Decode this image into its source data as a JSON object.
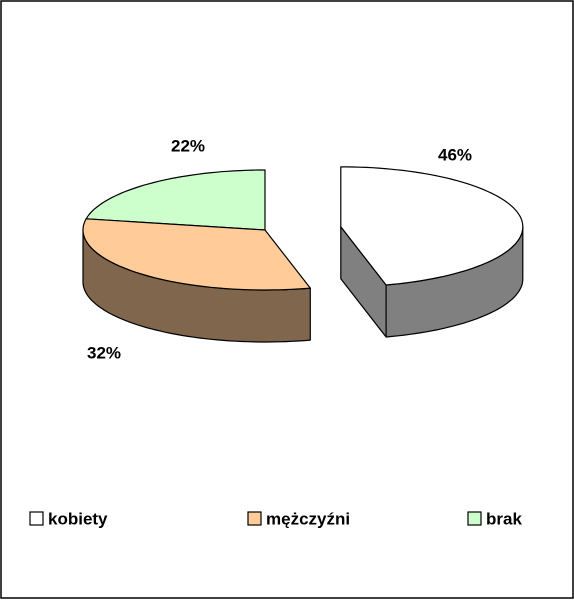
{
  "chart_data": {
    "type": "pie",
    "categories": [
      "kobiety",
      "mężczyźni",
      "brak"
    ],
    "values": [
      46,
      32,
      22
    ],
    "value_labels": [
      "46%",
      "32%",
      "22%"
    ],
    "colors": [
      "#ffffff",
      "#ffcc99",
      "#ccffcc"
    ],
    "legend": "bottom"
  }
}
